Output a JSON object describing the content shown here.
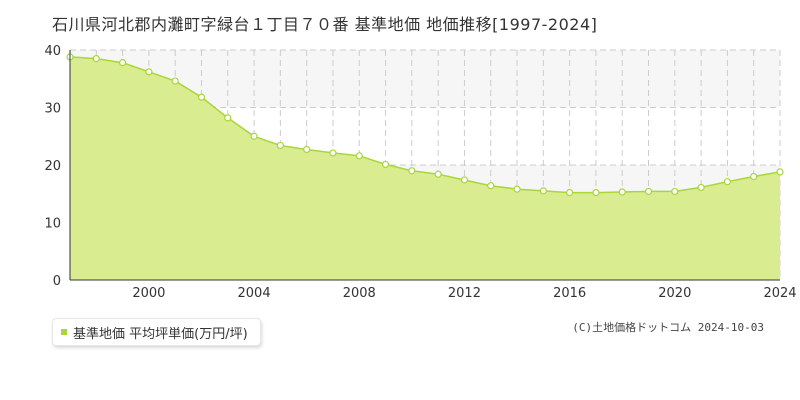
{
  "header": {
    "title": "石川県河北郡内灘町字緑台１丁目７０番 基準地価 地価推移[1997-2024]"
  },
  "legend": {
    "label": "基準地価 平均坪単価(万円/坪)",
    "color": "#a8d63c"
  },
  "footer": {
    "copyright": "(C)土地価格ドットコム 2024-10-03"
  },
  "colors": {
    "fill": "#d9ec8f",
    "line": "#a8d63c",
    "marker_fill": "#ffffff",
    "grid": "#cccccc"
  },
  "chart_data": {
    "type": "area",
    "x": [
      1997,
      1998,
      1999,
      2000,
      2001,
      2002,
      2003,
      2004,
      2005,
      2006,
      2007,
      2008,
      2009,
      2010,
      2011,
      2012,
      2013,
      2014,
      2015,
      2016,
      2017,
      2018,
      2019,
      2020,
      2021,
      2022,
      2023,
      2024
    ],
    "series": [
      {
        "name": "基準地価 平均坪単価(万円/坪)",
        "values": [
          38.8,
          38.5,
          37.8,
          36.2,
          34.6,
          31.8,
          28.2,
          25.0,
          23.4,
          22.7,
          22.1,
          21.6,
          20.1,
          19.0,
          18.4,
          17.4,
          16.4,
          15.8,
          15.5,
          15.2,
          15.2,
          15.3,
          15.4,
          15.4,
          16.1,
          17.1,
          18.0,
          18.8
        ]
      }
    ],
    "xlim": [
      1997,
      2024
    ],
    "ylim": [
      0,
      40
    ],
    "x_ticks": [
      2000,
      2004,
      2008,
      2012,
      2016,
      2020,
      2024
    ],
    "y_ticks": [
      0,
      10,
      20,
      30,
      40
    ],
    "grid": true,
    "legend_position": "bottom-left"
  }
}
